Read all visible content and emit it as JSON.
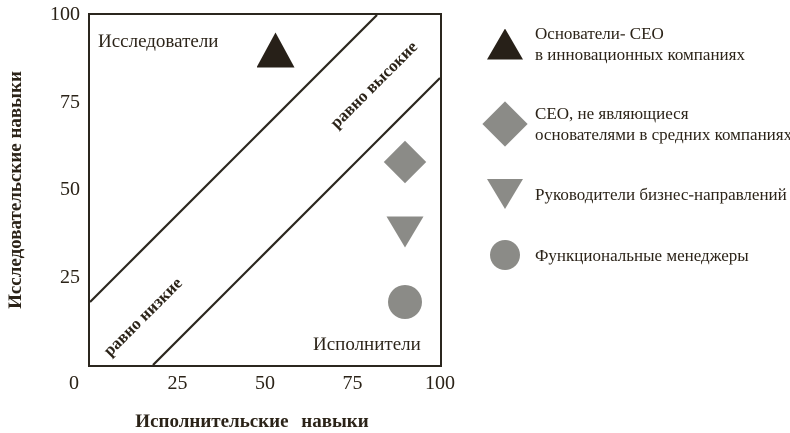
{
  "colors": {
    "dark": "#272018",
    "gray": "#8b8b87",
    "line": "#2b261e",
    "background": "#ffffff"
  },
  "legend": {
    "items": [
      {
        "marker": "triangle-up-icon",
        "color": "#272018",
        "lines": [
          "Основатели- CEO",
          "в инновационных компаниях"
        ]
      },
      {
        "marker": "diamond-icon",
        "color": "#8b8b87",
        "lines": [
          "CEO, не являющиеся",
          "основателями в средних компаниях"
        ]
      },
      {
        "marker": "triangle-down-icon",
        "color": "#8b8b87",
        "lines": [
          "Руководители бизнес-направлений"
        ]
      },
      {
        "marker": "circle-icon",
        "color": "#8b8b87",
        "lines": [
          "Функциональные менеджеры"
        ]
      }
    ]
  },
  "chart_data": {
    "type": "scatter",
    "title": "",
    "xlabel": "Исполнительские навыки",
    "ylabel": "Исследовательские навыки",
    "xlim": [
      0,
      100
    ],
    "ylim": [
      0,
      100
    ],
    "xticks": [
      0,
      25,
      50,
      75,
      100
    ],
    "yticks": [
      25,
      50,
      75,
      100
    ],
    "grid": false,
    "legend_position": "right",
    "series": [
      {
        "name": "Основатели- CEO в инновационных компаниях",
        "marker": "triangle-up",
        "color": "#272018",
        "points": [
          [
            53,
            90
          ]
        ]
      },
      {
        "name": "CEO, не являющиеся основателями в средних компаниях",
        "marker": "diamond",
        "color": "#8b8b87",
        "points": [
          [
            90,
            58
          ]
        ]
      },
      {
        "name": "Руководители бизнес-направлений",
        "marker": "triangle-down",
        "color": "#8b8b87",
        "points": [
          [
            90,
            38
          ]
        ]
      },
      {
        "name": "Функциональные менеджеры",
        "marker": "circle",
        "color": "#8b8b87",
        "points": [
          [
            90,
            18
          ]
        ]
      }
    ],
    "band_lines": [
      {
        "from": [
          0,
          18
        ],
        "to": [
          82,
          100
        ]
      },
      {
        "from": [
          18,
          0
        ],
        "to": [
          100,
          82
        ]
      }
    ],
    "annotations": [
      {
        "text": "Исследователи",
        "x": 22,
        "y": 92,
        "rotation": 0
      },
      {
        "text": "Исполнители",
        "x": 79,
        "y": 6,
        "rotation": 0
      },
      {
        "text": "равно высокие",
        "x": 81,
        "y": 80,
        "rotation": -45
      },
      {
        "text": "равно низкие",
        "x": 15.5,
        "y": 14.5,
        "rotation": -45
      }
    ]
  }
}
